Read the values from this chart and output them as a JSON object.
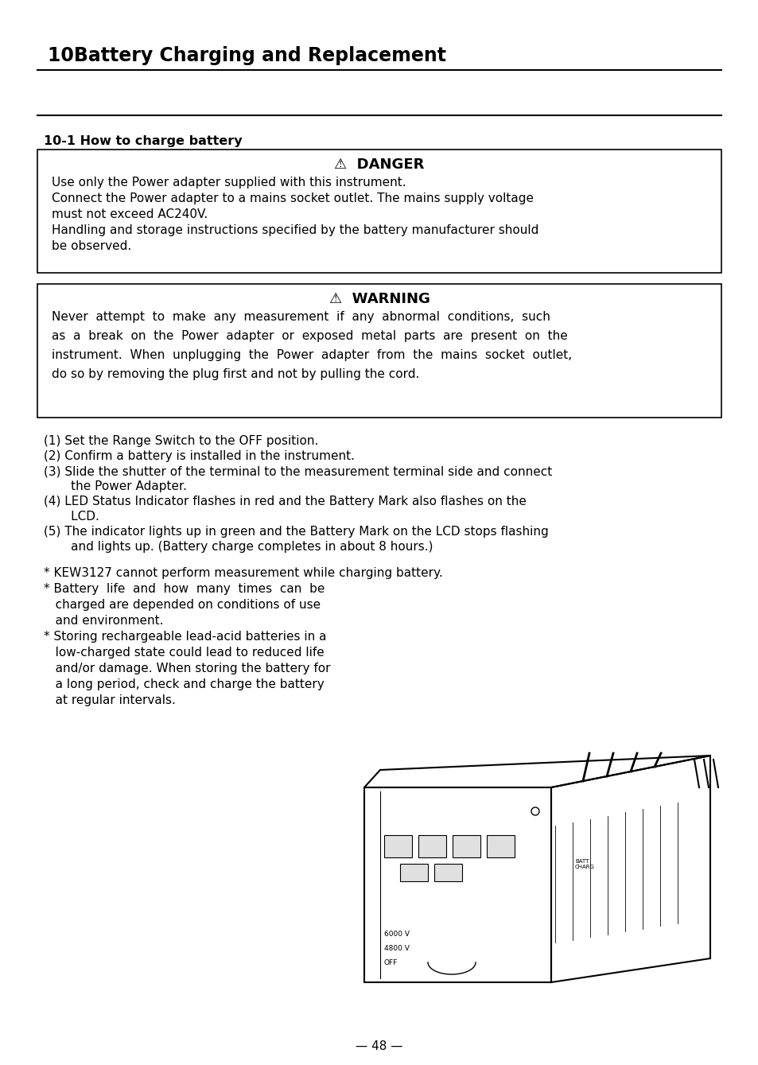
{
  "title": "10Battery Charging and Replacement",
  "section": "10-1 How to charge battery",
  "danger_title": "⚠  DANGER",
  "danger_lines": [
    "Use only the Power adapter supplied with this instrument.",
    "Connect the Power adapter to a mains socket outlet. The mains supply voltage",
    "must not exceed AC240V.",
    "Handling and storage instructions specified by the battery manufacturer should",
    "be observed."
  ],
  "warning_title": "⚠  WARNING",
  "warning_lines": [
    "Never  attempt  to  make  any  measurement  if  any  abnormal  conditions,  such",
    "as  a  break  on  the  Power  adapter  or  exposed  metal  parts  are  present  on  the",
    "instrument.  When  unplugging  the  Power  adapter  from  the  mains  socket  outlet,",
    "do so by removing the plug first and not by pulling the cord."
  ],
  "step1": "(1) Set the Range Switch to the OFF position.",
  "step2": "(2) Confirm a battery is installed in the instrument.",
  "step3a": "(3) Slide the shutter of the terminal to the measurement terminal side and connect",
  "step3b": "       the Power Adapter.",
  "step4a": "(4) LED Status Indicator flashes in red and the Battery Mark also flashes on the",
  "step4b": "       LCD.",
  "step5a": "(5) The indicator lights up in green and the Battery Mark on the LCD stops flashing",
  "step5b": "       and lights up. (Battery charge completes in about 8 hours.)",
  "note1": "* KEW3127 cannot perform measurement while charging battery.",
  "note2a": "* Battery  life  and  how  many  times  can  be",
  "note2b": "   charged are depended on conditions of use",
  "note2c": "   and environment.",
  "note3a": "* Storing rechargeable lead-acid batteries in a",
  "note3b": "   low-charged state could lead to reduced life",
  "note3c": "   and/or damage. When storing the battery for",
  "note3d": "   a long period, check and charge the battery",
  "note3e": "   at regular intervals.",
  "page_number": "— 48 —",
  "bg_color": "#ffffff",
  "text_color": "#000000"
}
